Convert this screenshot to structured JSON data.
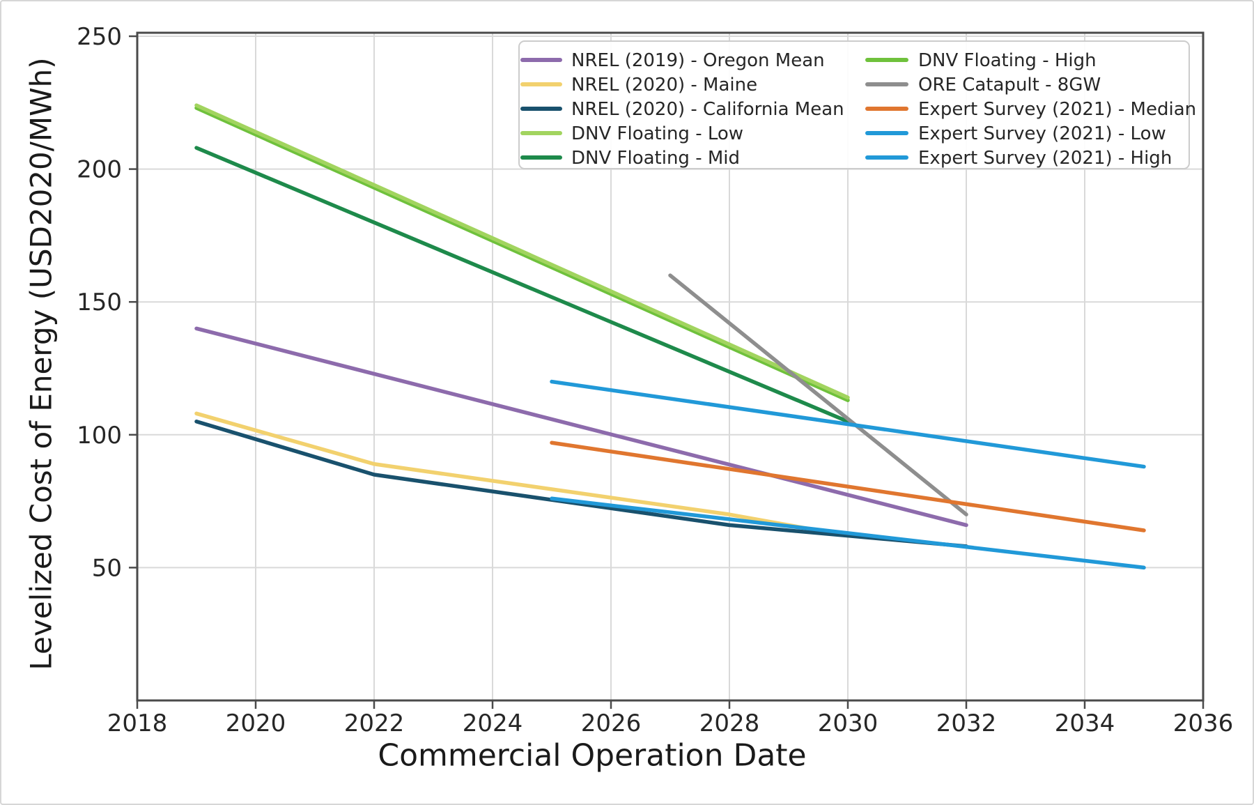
{
  "figure": {
    "background_color": "#ffffff",
    "outer_border_color": "#d6d6d6",
    "grid_color": "#d9d9d9",
    "spine_color": "#4a4a4a",
    "tick_label_color": "#262626",
    "legend_border_color": "#cccccc",
    "legend_background": "#ffffff"
  },
  "chart_data": {
    "type": "line",
    "title": "",
    "xlabel": "Commercial Operation Date",
    "ylabel": "Levelized Cost of Energy (USD2020/MWh)",
    "xlim": [
      2018,
      2036
    ],
    "ylim": [
      0,
      250
    ],
    "xticks": [
      2018,
      2020,
      2022,
      2024,
      2026,
      2028,
      2030,
      2032,
      2034,
      2036
    ],
    "yticks": [
      50,
      100,
      150,
      200,
      250
    ],
    "grid": true,
    "legend_position": "upper right inside plot, 2 columns",
    "series": [
      {
        "name": "NREL (2019) - Oregon Mean",
        "color": "#8d6bac",
        "points": [
          [
            2019,
            140
          ],
          [
            2032,
            66
          ]
        ]
      },
      {
        "name": "NREL (2020) - Maine",
        "color": "#f2d16e",
        "points": [
          [
            2019,
            108
          ],
          [
            2022,
            89
          ],
          [
            2028,
            70
          ],
          [
            2030,
            62
          ]
        ]
      },
      {
        "name": "NREL (2020) - California Mean",
        "color": "#19516d",
        "points": [
          [
            2019,
            105
          ],
          [
            2022,
            85
          ],
          [
            2028,
            66
          ],
          [
            2032,
            58
          ]
        ]
      },
      {
        "name": "DNV Floating - High",
        "color": "#6fc13c",
        "points": [
          [
            2019,
            223
          ],
          [
            2030,
            113
          ]
        ]
      },
      {
        "name": "DNV Floating - Mid",
        "color": "#1e8a4b",
        "points": [
          [
            2019,
            208
          ],
          [
            2030,
            105
          ]
        ]
      },
      {
        "name": "DNV Floating - Low",
        "color": "#a2d45f",
        "points": [
          [
            2019,
            224
          ],
          [
            2030,
            114
          ]
        ]
      },
      {
        "name": "ORE Catapult - 8GW",
        "color": "#8e8e8e",
        "points": [
          [
            2027,
            160
          ],
          [
            2032,
            70
          ]
        ]
      },
      {
        "name": "Expert Survey (2021) - Median",
        "color": "#e0762f",
        "points": [
          [
            2025,
            97
          ],
          [
            2035,
            64
          ]
        ]
      },
      {
        "name": "Expert Survey (2021) - Low",
        "color": "#2199d8",
        "points": [
          [
            2025,
            76
          ],
          [
            2035,
            50
          ]
        ]
      },
      {
        "name": "Expert Survey (2021) - High",
        "color": "#2199d8",
        "points": [
          [
            2025,
            120
          ],
          [
            2035,
            88
          ]
        ]
      }
    ],
    "legend": {
      "columns": 2,
      "entries": [
        "NREL (2019) - Oregon Mean",
        "NREL (2020) - Maine",
        "NREL (2020) - California Mean",
        "DNV Floating - Low",
        "DNV Floating - Mid",
        "DNV Floating - High",
        "ORE Catapult - 8GW",
        "Expert Survey (2021) - Median",
        "Expert Survey (2021) - Low",
        "Expert Survey (2021) - High"
      ]
    }
  }
}
